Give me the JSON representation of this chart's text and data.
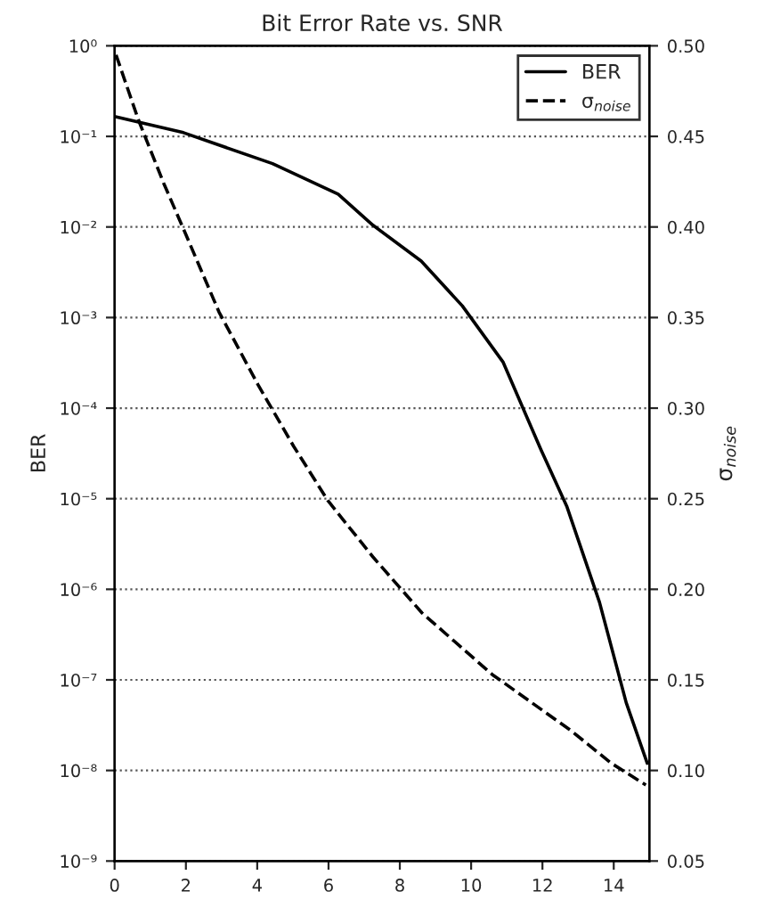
{
  "chart_data": {
    "type": "line",
    "title": "Bit Error Rate vs. SNR",
    "ylabel": "BER",
    "y2label": "σ$_{noise}$",
    "log": "y",
    "grid": "y",
    "legend": "top right",
    "xlim": [
      0,
      15
    ],
    "xticks": [
      0,
      2,
      4,
      6,
      8,
      10,
      12,
      14
    ],
    "ylim": [
      1e-09,
      1
    ],
    "yticks": [
      {
        "value": 1,
        "label": "10⁰"
      },
      {
        "value": 0.1,
        "label": "10⁻¹"
      },
      {
        "value": 0.01,
        "label": "10⁻²"
      },
      {
        "value": 0.001,
        "label": "10⁻³"
      },
      {
        "value": 0.0001,
        "label": "10⁻⁴"
      },
      {
        "value": 1e-05,
        "label": "10⁻⁵"
      },
      {
        "value": 1e-06,
        "label": "10⁻⁶"
      },
      {
        "value": 1e-07,
        "label": "10⁻⁷"
      },
      {
        "value": 1e-08,
        "label": "10⁻⁸"
      },
      {
        "value": 1e-09,
        "label": "10⁻⁹"
      }
    ],
    "y2lim": [
      0.05,
      0.5
    ],
    "y2ticks": [
      0.05,
      {
        "value": 0.1,
        "label": "0.10"
      },
      0.15,
      {
        "value": 0.2,
        "label": "0.20"
      },
      0.25,
      {
        "value": 0.3,
        "label": "0.30"
      },
      0.35,
      {
        "value": 0.4,
        "label": "0.40"
      },
      0.45,
      {
        "value": 0.5,
        "label": "0.50"
      }
    ],
    "series": [
      {
        "name": "BER",
        "color": "#000000",
        "line_style": "solid",
        "x": [
          0,
          1.93,
          4.43,
          6.27,
          7.24,
          8.6,
          9.75,
          10.9,
          11.97,
          12.68,
          13.6,
          14.35,
          14.94
        ],
        "values": [
          0.166,
          0.11,
          0.05,
          0.023,
          0.0105,
          0.0042,
          0.00135,
          0.00032,
          3.4e-05,
          8.3e-06,
          7.2e-07,
          5.6e-08,
          1.2e-08
        ]
      },
      {
        "name": "σ$_{noise}$",
        "color": "#000000",
        "line_style": "dashed",
        "axis": "y2",
        "x": [
          0.04,
          0.67,
          1.38,
          1.93,
          2.93,
          4.02,
          5.02,
          5.98,
          7.24,
          8.62,
          10.59,
          12.8,
          13.93,
          14.9
        ],
        "values": [
          0.495,
          0.459,
          0.424,
          0.399,
          0.353,
          0.313,
          0.279,
          0.249,
          0.218,
          0.187,
          0.153,
          0.122,
          0.104,
          0.092
        ]
      }
    ]
  }
}
